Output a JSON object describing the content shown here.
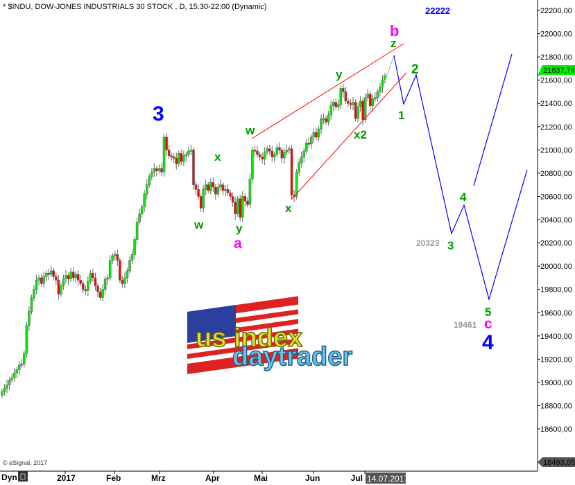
{
  "header": {
    "title": "* $INDU, DOW-JONES INDUSTRIALS 30 STOCK , D, 15:30-22:00 (Dynamic)"
  },
  "footer": {
    "copyright": "© eSignal, 2017",
    "mode": "Dyn",
    "lock_icon": "lock-icon",
    "cursor_date": "14.07.2017"
  },
  "logo": {
    "line1": "us index",
    "line2": "daytrader"
  },
  "colors": {
    "up": "#00ee00",
    "down": "#ff0000",
    "wick": "#666666",
    "projection": "#0000ff",
    "channel": "#ff0000",
    "green_label": "#009900",
    "magenta_label": "#ff00ff",
    "blue_label": "#0000ff",
    "gray_label": "#999999"
  },
  "chart_data": {
    "type": "candlestick",
    "title": "",
    "x_ticks": [
      "2017",
      "Feb",
      "Mrz",
      "Apr",
      "Mai",
      "Jun",
      "Jul"
    ],
    "y_ticks": [
      22200,
      22000,
      21800,
      21600,
      21400,
      21200,
      21000,
      20800,
      20600,
      20400,
      20200,
      20000,
      19800,
      19600,
      19400,
      19200,
      19000,
      18800,
      18600
    ],
    "y_tick_labels": [
      "22200,00",
      "22000,00",
      "21800,00",
      "21600,00",
      "21400,00",
      "21200,00",
      "21000,00",
      "20800,00",
      "20600,00",
      "20400,00",
      "20200,00",
      "20000,00",
      "19800,00",
      "19600,00",
      "19400,00",
      "19200,00",
      "19000,00",
      "18800,00",
      "18600,00"
    ],
    "ylim": [
      18493.05,
      22290
    ],
    "last_price_label": "21637,74",
    "last_price": 21637.74,
    "min_label": "18493,05",
    "grid": false,
    "close": [
      18920,
      18950,
      18980,
      19020,
      19040,
      19080,
      19110,
      19150,
      19160,
      19250,
      19490,
      19610,
      19730,
      19800,
      19880,
      19900,
      19850,
      19910,
      19940,
      19930,
      19960,
      19910,
      19880,
      19760,
      19830,
      19890,
      19920,
      19890,
      19950,
      19900,
      19930,
      19880,
      19850,
      19800,
      19790,
      19870,
      19940,
      19900,
      19830,
      19780,
      19730,
      19800,
      19890,
      19900,
      20050,
      20090,
      20100,
      20050,
      19880,
      19850,
      19900,
      19960,
      20050,
      20100,
      20230,
      20380,
      20450,
      20510,
      20620,
      20700,
      20770,
      20810,
      20840,
      20820,
      20840,
      20810,
      21110,
      21000,
      20950,
      20940,
      20930,
      20880,
      20970,
      20900,
      20950,
      20960,
      20990,
      21000,
      20700,
      20660,
      20600,
      20500,
      20660,
      20700,
      20650,
      20720,
      20680,
      20620,
      20680,
      20700,
      20650,
      20660,
      20630,
      20600,
      20550,
      20450,
      20580,
      20420,
      20600,
      20560,
      20530,
      20750,
      21000,
      20990,
      20960,
      20940,
      20920,
      20980,
      21010,
      20990,
      20940,
      20960,
      21020,
      21000,
      20930,
      20980,
      21000,
      21010,
      20610,
      20600,
      20810,
      20890,
      20940,
      20990,
      21060,
      21050,
      21110,
      21150,
      21110,
      21180,
      21270,
      21270,
      21240,
      21300,
      21380,
      21410,
      21370,
      21390,
      21530,
      21500,
      21420,
      21400,
      21390,
      21410,
      21270,
      21370,
      21420,
      21260,
      21450,
      21480,
      21380,
      21440,
      21450,
      21500,
      21540,
      21600,
      21638
    ],
    "projection_prices": [
      21812,
      21395,
      21646,
      20281,
      20525,
      19715,
      20829
    ],
    "projection_alt_prices": [
      20692,
      21824
    ],
    "wave_labels": [
      {
        "text": "3",
        "color": "blue"
      },
      {
        "text": "w",
        "color": "green"
      },
      {
        "text": "x",
        "color": "green"
      },
      {
        "text": "y",
        "color": "green"
      },
      {
        "text": "a",
        "color": "magenta"
      },
      {
        "text": "w",
        "color": "green"
      },
      {
        "text": "x",
        "color": "green"
      },
      {
        "text": "y",
        "color": "green"
      },
      {
        "text": "x2",
        "color": "green"
      },
      {
        "text": "b",
        "color": "magenta"
      },
      {
        "text": "z",
        "color": "green"
      },
      {
        "text": "1",
        "color": "green"
      },
      {
        "text": "2",
        "color": "green"
      },
      {
        "text": "3",
        "color": "green"
      },
      {
        "text": "4",
        "color": "green"
      },
      {
        "text": "5",
        "color": "green"
      },
      {
        "text": "c",
        "color": "magenta"
      },
      {
        "text": "4",
        "color": "blue"
      },
      {
        "text": "22222",
        "color": "blue"
      },
      {
        "text": "20323",
        "color": "gray"
      },
      {
        "text": "19461",
        "color": "gray"
      }
    ]
  }
}
